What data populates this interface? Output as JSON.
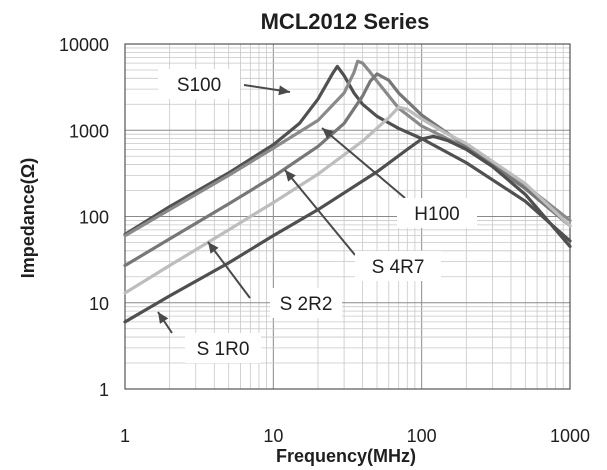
{
  "chart_data": {
    "type": "line",
    "title": "MCL2012 Series",
    "xlabel": "Frequency(MHz)",
    "ylabel": "Impedance(Ω)",
    "x_scale": "log",
    "y_scale": "log",
    "xlim": [
      1,
      1000
    ],
    "ylim": [
      1,
      10000
    ],
    "x_ticks": [
      "1",
      "10",
      "100",
      "1000"
    ],
    "y_ticks": [
      "10000",
      "1000",
      "100",
      "10",
      "1"
    ],
    "grid": true,
    "series": [
      {
        "name": "S100",
        "color": "#505050",
        "x": [
          1,
          2,
          5,
          10,
          15,
          20,
          25,
          27,
          30,
          35,
          40,
          50,
          70,
          100,
          200,
          500,
          1000
        ],
        "y": [
          62,
          130,
          320,
          680,
          1200,
          2300,
          4500,
          5500,
          4300,
          2700,
          2000,
          1450,
          1050,
          800,
          420,
          150,
          52
        ]
      },
      {
        "name": "H100",
        "color": "#8a8a8a",
        "x": [
          1,
          2,
          5,
          10,
          20,
          30,
          35,
          37,
          40,
          45,
          50,
          60,
          70,
          100,
          200,
          500,
          1000
        ],
        "y": [
          60,
          120,
          300,
          620,
          1300,
          2700,
          4700,
          6300,
          6000,
          4700,
          3700,
          2500,
          1800,
          1120,
          620,
          230,
          90
        ]
      },
      {
        "name": "S 4R7",
        "color": "#777777",
        "x": [
          1,
          2,
          5,
          10,
          20,
          30,
          40,
          45,
          50,
          60,
          70,
          100,
          200,
          500,
          1000
        ],
        "y": [
          27,
          55,
          140,
          290,
          650,
          1200,
          2500,
          3700,
          4500,
          3800,
          2700,
          1500,
          650,
          210,
          78
        ]
      },
      {
        "name": "S 2R2",
        "color": "#bdbdbd",
        "x": [
          1,
          2,
          5,
          10,
          20,
          40,
          60,
          70,
          80,
          100,
          150,
          200,
          500,
          1000
        ],
        "y": [
          13,
          27,
          70,
          145,
          310,
          750,
          1400,
          1850,
          1750,
          1350,
          900,
          700,
          240,
          78
        ]
      },
      {
        "name": "S 1R0",
        "color": "#4f4f4f",
        "x": [
          1,
          2,
          5,
          10,
          20,
          50,
          80,
          100,
          120,
          150,
          200,
          300,
          500,
          1000
        ],
        "y": [
          6,
          12,
          29,
          60,
          120,
          330,
          600,
          790,
          850,
          760,
          600,
          380,
          180,
          45
        ]
      }
    ],
    "annotations": [
      {
        "label": "S100",
        "target_series": "S100"
      },
      {
        "label": "H100",
        "target_series": "H100"
      },
      {
        "label": "S 4R7",
        "target_series": "S 4R7"
      },
      {
        "label": "S 2R2",
        "target_series": "S 2R2"
      },
      {
        "label": "S 1R0",
        "target_series": "S 1R0"
      }
    ]
  }
}
